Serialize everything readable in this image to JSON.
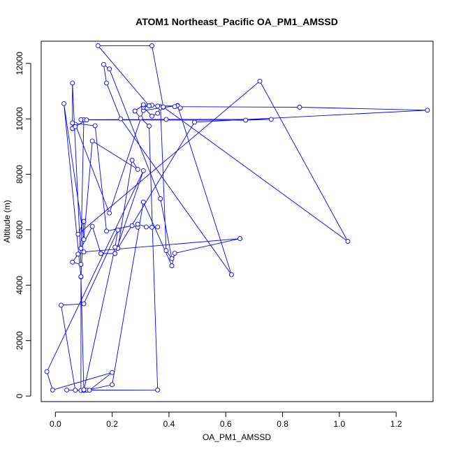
{
  "chart_data": {
    "type": "line",
    "title": "ATOM1 Northeast_Pacific OA_PM1_AMSSD",
    "xlabel": "OA_PM1_AMSSD",
    "ylabel": "Altitude (m)",
    "xlim": [
      -0.05,
      1.33
    ],
    "ylim": [
      -200,
      12800
    ],
    "xticks": [
      0.0,
      0.2,
      0.4,
      0.6,
      0.8,
      1.0,
      1.2
    ],
    "xtick_labels": [
      "0.0",
      "0.2",
      "0.4",
      "0.6",
      "0.8",
      "1.0",
      "1.2"
    ],
    "yticks": [
      0,
      2000,
      4000,
      6000,
      8000,
      10000,
      12000
    ],
    "ytick_labels": [
      "0",
      "2000",
      "4000",
      "6000",
      "8000",
      "10000",
      "12000"
    ],
    "grid": false,
    "line_color": "#0000ff",
    "series": [
      {
        "x": [
          0.04,
          0.11,
          0.2,
          0.31,
          0.41,
          0.42,
          0.65,
          0.1,
          0.08,
          0.06,
          0.09,
          0.06,
          0.06,
          0.07,
          0.19,
          0.31,
          0.43,
          0.62,
          0.23,
          0.18,
          0.17,
          0.19,
          0.37,
          0.41,
          0.39,
          0.37,
          0.34,
          0.31,
          0.34,
          0.36,
          0.37,
          0.38,
          0.36,
          0.43,
          0.44,
          0.42,
          0.86,
          1.31,
          0.49,
          0.22,
          0.27,
          0.29,
          0.13,
          0.1,
          0.03,
          0.09,
          0.09,
          0.1,
          0.21,
          0.22,
          0.1,
          0.02,
          0.07,
          0.36,
          0.33,
          0.3,
          0.28,
          0.31,
          0.31,
          0.33,
          0.15,
          0.34,
          0.38,
          1.03,
          0.72,
          0.08,
          0.1,
          0.09,
          0.1,
          0.12,
          0.2,
          -0.01,
          -0.03,
          0.31,
          0.21,
          0.16,
          0.13,
          0.09,
          0.1,
          0.09,
          0.39,
          0.76,
          0.67,
          0.11,
          0.07,
          0.06,
          0.14,
          0.18,
          0.27,
          0.29,
          0.29,
          0.32,
          0.34,
          0.36
        ],
        "y": [
          220,
          210,
          410,
          7000,
          4700,
          5150,
          5680,
          5200,
          5120,
          4830,
          4750,
          11290,
          9650,
          9800,
          6600,
          10300,
          10480,
          4380,
          10000,
          11290,
          11960,
          11800,
          7120,
          4960,
          5250,
          10440,
          10490,
          10420,
          10100,
          10200,
          10400,
          10420,
          10460,
          10470,
          10390,
          10440,
          10420,
          10310,
          9880,
          5330,
          8510,
          8180,
          9200,
          5650,
          10550,
          4300,
          200,
          200,
          5370,
          5990,
          3330,
          3280,
          210,
          220,
          9740,
          10030,
          10280,
          10500,
          10510,
          10470,
          12640,
          12640,
          10430,
          5580,
          11360,
          5840,
          6300,
          4310,
          230,
          210,
          850,
          220,
          880,
          8130,
          5140,
          5140,
          6120,
          5330,
          9970,
          9970,
          9980,
          9980,
          9950,
          9960,
          9720,
          9850,
          9750,
          5950,
          6150,
          6090,
          6200,
          6100,
          6090,
          6100
        ]
      }
    ]
  }
}
